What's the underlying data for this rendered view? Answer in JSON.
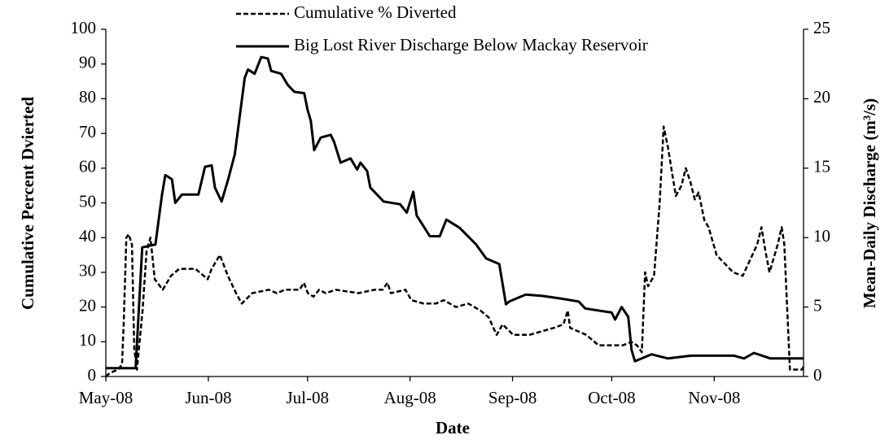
{
  "chart_data": {
    "type": "line",
    "x_label": "Date",
    "y_label": "Cumulative Percent Dvierted",
    "y2_label": "Mean-Daily Discharge (m³/s)",
    "xlim": [
      0,
      211
    ],
    "xticks": [
      {
        "value": 0,
        "label": "May-08"
      },
      {
        "value": 31,
        "label": "Jun-08"
      },
      {
        "value": 61,
        "label": "Jul-08"
      },
      {
        "value": 92,
        "label": "Aug-08"
      },
      {
        "value": 123,
        "label": "Sep-08"
      },
      {
        "value": 153,
        "label": "Oct-08"
      },
      {
        "value": 184,
        "label": "Nov-08"
      }
    ],
    "ylim": [
      0,
      100
    ],
    "yticks": [
      0,
      10,
      20,
      30,
      40,
      50,
      60,
      70,
      80,
      90,
      100
    ],
    "y2lim": [
      0,
      25
    ],
    "y2ticks": [
      0,
      5,
      10,
      15,
      20,
      25
    ],
    "legend": "top",
    "series": [
      {
        "name": "Cumulative % Diverted",
        "color": "#000000",
        "style": "dashed",
        "x": [
          0.0,
          1.2,
          3.7,
          4.9,
          5.4,
          6.2,
          6.9,
          7.9,
          8.6,
          9.4,
          11.1,
          12.3,
          13.5,
          14.8,
          17.2,
          19.7,
          22.2,
          27.1,
          29.6,
          30.8,
          32.0,
          34.5,
          36.9,
          39.4,
          41.1,
          44.3,
          49.3,
          51.7,
          54.2,
          58.6,
          59.9,
          61.1,
          62.8,
          64.5,
          66.5,
          69.5,
          76.4,
          81.3,
          83.7,
          85.2,
          86.2,
          90.6,
          92.4,
          96.1,
          99.8,
          102.2,
          105.9,
          109.6,
          113.3,
          115.8,
          118.2,
          120.0,
          123.2,
          128.1,
          135.5,
          138.4,
          139.7,
          140.4,
          145.3,
          149.0,
          156.4,
          158.9,
          160.6,
          162.1,
          163.1,
          164.0,
          165.8,
          167.5,
          168.7,
          170.0,
          171.2,
          172.4,
          174.1,
          175.4,
          176.8,
          178.1,
          179.3,
          181.0,
          182.3,
          184.7,
          189.7,
          192.6,
          197.0,
          198.3,
          199.5,
          200.7,
          203.2,
          204.4,
          205.2,
          206.9,
          210.6,
          211.0
        ],
        "values": [
          0,
          1,
          2,
          3.5,
          15,
          40,
          41,
          38,
          8,
          2,
          19,
          36,
          40,
          28,
          25,
          29,
          31,
          31,
          29,
          28,
          31,
          35,
          29,
          24,
          21,
          24,
          25,
          24,
          25,
          25,
          27,
          24,
          23,
          25,
          24,
          25,
          24,
          25,
          25,
          27,
          24,
          25,
          22,
          21,
          21,
          22,
          20,
          21,
          19,
          17,
          12,
          15,
          12,
          12,
          14,
          15,
          19,
          14,
          12,
          9,
          9,
          10,
          9,
          7,
          30,
          26,
          29,
          50,
          72,
          66,
          59,
          52,
          55,
          60,
          56,
          51,
          53,
          45,
          43,
          35,
          30,
          29,
          38,
          43,
          36,
          30,
          38,
          43,
          38,
          2,
          2,
          3
        ]
      },
      {
        "name": "Big Lost River Discharge Below Mackay Reservoir",
        "color": "#000000",
        "style": "solid",
        "axis": "y2",
        "x": [
          0,
          9,
          11,
          15,
          17,
          18,
          20,
          21,
          23,
          28,
          30,
          32,
          33,
          35,
          37,
          39,
          42,
          43,
          45,
          47,
          49,
          50,
          53,
          55,
          57,
          60,
          61,
          62,
          63,
          65,
          68,
          69,
          71,
          74,
          76,
          77,
          79,
          80,
          84,
          89,
          91,
          93,
          94,
          98,
          101,
          103,
          107,
          112,
          115,
          119,
          121,
          122,
          127,
          132,
          138,
          143,
          145,
          153,
          154,
          156,
          158,
          159,
          160,
          165,
          170,
          177,
          190,
          193,
          196,
          201,
          211
        ],
        "values": [
          0.6,
          0.6,
          9.3,
          9.5,
          13.1,
          14.5,
          14.2,
          12.5,
          13.1,
          13.1,
          15.1,
          15.2,
          13.6,
          12.6,
          14.2,
          16.0,
          21.5,
          22.1,
          21.8,
          23.0,
          22.9,
          22.0,
          21.8,
          21.0,
          20.5,
          20.4,
          19.2,
          18.4,
          16.3,
          17.2,
          17.4,
          16.9,
          15.4,
          15.7,
          14.9,
          15.4,
          14.8,
          13.6,
          12.6,
          12.4,
          11.8,
          13.3,
          11.6,
          10.1,
          10.1,
          11.3,
          10.7,
          9.5,
          8.5,
          8.1,
          5.2,
          5.4,
          5.9,
          5.8,
          5.6,
          5.4,
          4.9,
          4.6,
          4.1,
          5.0,
          4.3,
          1.9,
          1.1,
          1.6,
          1.3,
          1.5,
          1.5,
          1.3,
          1.7,
          1.3,
          1.3
        ]
      }
    ]
  }
}
